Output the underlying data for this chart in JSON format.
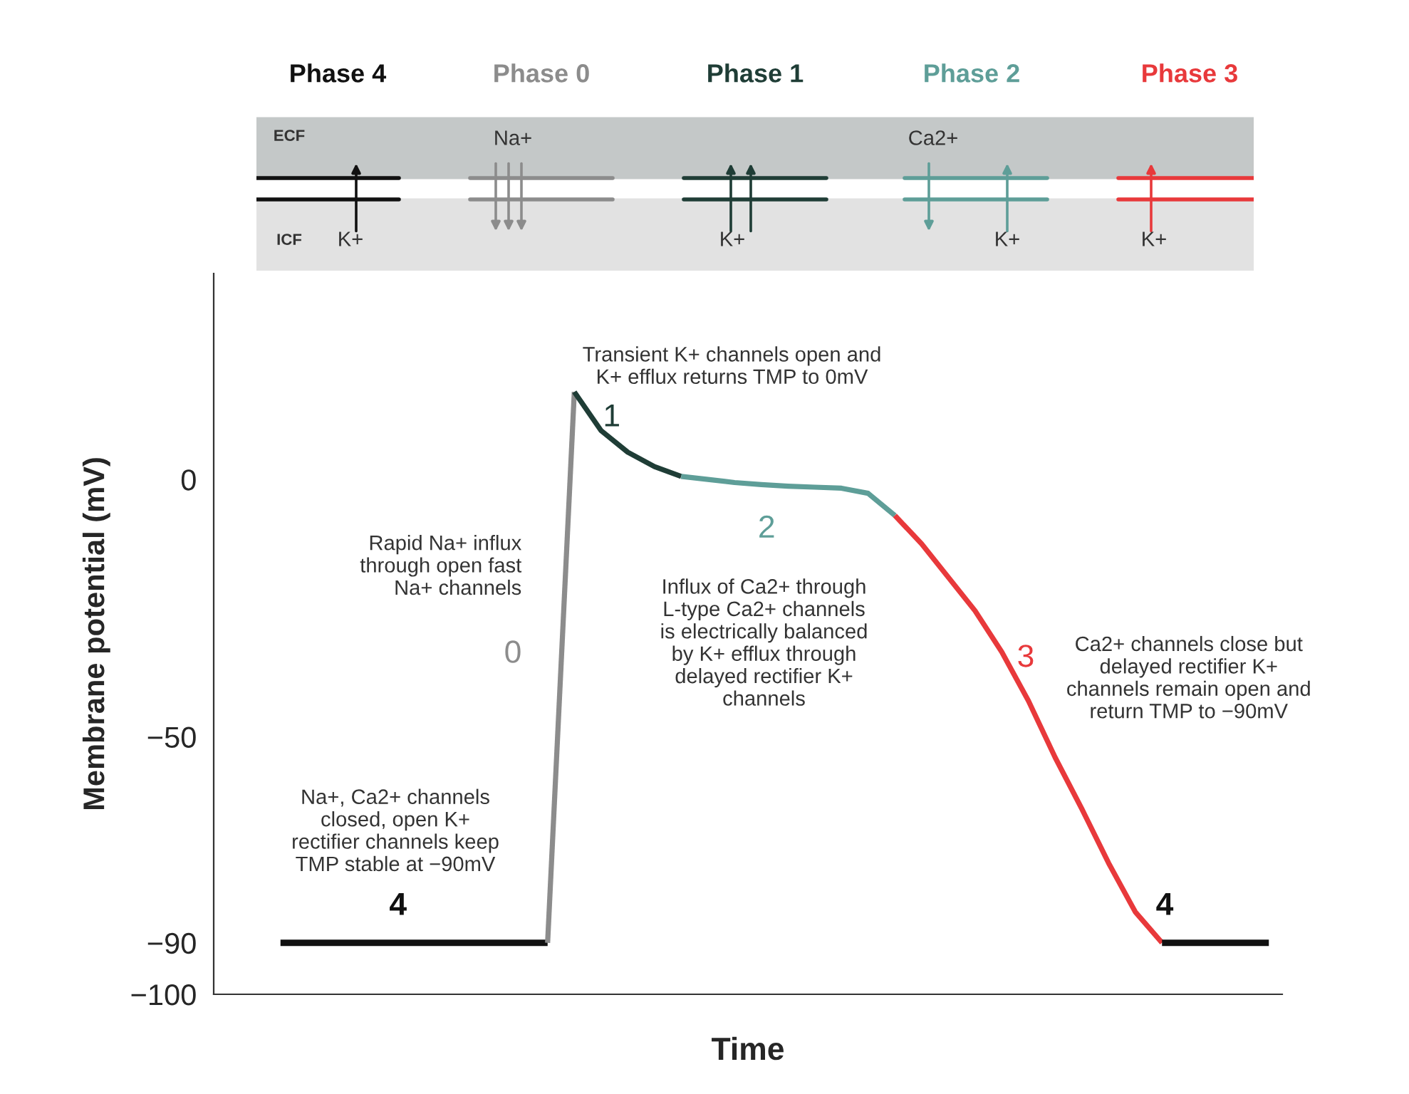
{
  "chart_data": {
    "type": "line",
    "xlabel": "Time",
    "ylabel": "Membrane potential (mV)",
    "categories": [
      null,
      null,
      null,
      null,
      null,
      null,
      null,
      null,
      null,
      null,
      null,
      null,
      null,
      null,
      null,
      null,
      null,
      null,
      null,
      null,
      null,
      null,
      null,
      null,
      null,
      null,
      null,
      null,
      null,
      null,
      null,
      null,
      null,
      null,
      null,
      null,
      null,
      null,
      null,
      null
    ],
    "ylim": [
      -100,
      40
    ],
    "yticks": [
      0,
      {
        "value": -50,
        "label": "−50"
      },
      {
        "value": -90,
        "label": "−90"
      },
      {
        "value": -100,
        "label": "−100"
      }
    ],
    "grid": false,
    "legend": false,
    "marker": "none",
    "line_style": "solid",
    "series": [
      {
        "color": "#111111",
        "values": [
          null,
          null,
          -90,
          -90,
          -90,
          -90,
          -90,
          -90,
          -90,
          -90,
          -90,
          -90,
          -90,
          null,
          null,
          null,
          null,
          null,
          null,
          null,
          null,
          null,
          null,
          null,
          null,
          null,
          null,
          null,
          null,
          null,
          null,
          null,
          null,
          null,
          null,
          null,
          null,
          null,
          null,
          null
        ]
      },
      {
        "color": "#8c8c8c",
        "values": [
          null,
          null,
          null,
          null,
          null,
          null,
          null,
          null,
          null,
          null,
          null,
          null,
          -90,
          17,
          null,
          null,
          null,
          null,
          null,
          null,
          null,
          null,
          null,
          null,
          null,
          null,
          null,
          null,
          null,
          null,
          null,
          null,
          null,
          null,
          null,
          null,
          null,
          null,
          null,
          null
        ]
      },
      {
        "color": "#1f3d36",
        "values": [
          null,
          null,
          null,
          null,
          null,
          null,
          null,
          null,
          null,
          null,
          null,
          null,
          null,
          17,
          9.5,
          5.3,
          2.5,
          0.6,
          null,
          null,
          null,
          null,
          null,
          null,
          null,
          null,
          null,
          null,
          null,
          null,
          null,
          null,
          null,
          null,
          null,
          null,
          null,
          null,
          null,
          null
        ]
      },
      {
        "color": "#5e9e98",
        "values": [
          null,
          null,
          null,
          null,
          null,
          null,
          null,
          null,
          null,
          null,
          null,
          null,
          null,
          null,
          null,
          null,
          null,
          0.6,
          0,
          -0.6,
          -1,
          -1.3,
          -1.5,
          -1.7,
          -2.7,
          -7,
          null,
          null,
          null,
          null,
          null,
          null,
          null,
          null,
          null,
          null,
          null,
          null,
          null,
          null
        ]
      },
      {
        "color": "#e8393b",
        "values": [
          null,
          null,
          null,
          null,
          null,
          null,
          null,
          null,
          null,
          null,
          null,
          null,
          null,
          null,
          null,
          null,
          null,
          null,
          null,
          null,
          null,
          null,
          null,
          null,
          null,
          -7,
          -12.5,
          -19,
          -25.5,
          -33.5,
          -43,
          -54,
          -64,
          -74.5,
          -84,
          -90,
          null,
          null,
          null,
          null
        ]
      },
      {
        "color": "#111111",
        "values": [
          null,
          null,
          null,
          null,
          null,
          null,
          null,
          null,
          null,
          null,
          null,
          null,
          null,
          null,
          null,
          null,
          null,
          null,
          null,
          null,
          null,
          null,
          null,
          null,
          null,
          null,
          null,
          null,
          null,
          null,
          null,
          null,
          null,
          null,
          null,
          -90,
          -90,
          -90,
          -90,
          -90
        ]
      }
    ],
    "annotations": [
      "Transient K+ channels open and\nK+ efflux returns TMP to 0mV",
      "1",
      "Rapid Na+ influx\nthrough open fast\nNa+ channels",
      "0",
      "2",
      "Influx of Ca2+ through\nL-type Ca2+ channels\nis electrically balanced\nby K+ efflux through\ndelayed rectifier K+\nchannels",
      "3",
      "Ca2+ channels close but\ndelayed rectifier K+\nchannels remain open and\nreturn TMP to −90mV",
      "Na+, Ca2+ channels\nclosed, open K+\nrectifier channels keep\nTMP stable at −90mV",
      "4",
      "4",
      "Phase 4",
      "Phase 0",
      "Phase 1",
      "Phase 2",
      "Phase 3",
      "ECF",
      "ICF",
      "Na+",
      "Ca2+",
      "K+",
      "K+",
      "K+",
      "K+"
    ]
  }
}
